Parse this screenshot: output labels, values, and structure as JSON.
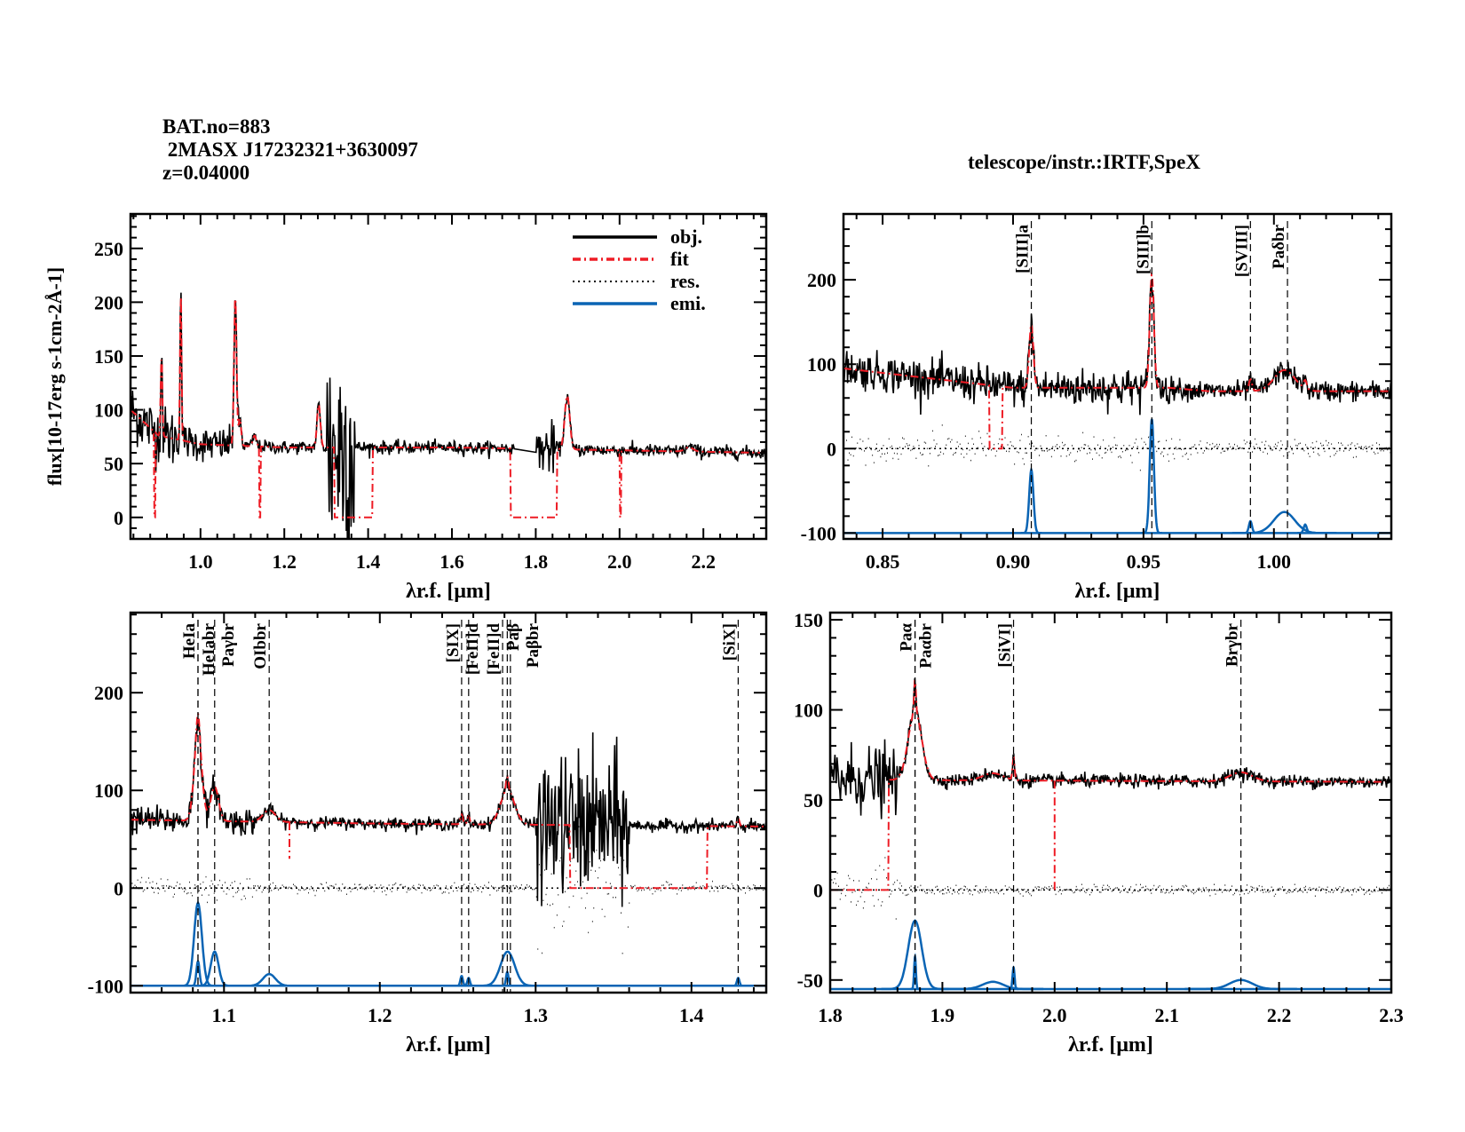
{
  "header": {
    "bat_no": "BAT.no=883",
    "object": " 2MASX J17232321+3630097",
    "redshift": "z=0.04000",
    "instrument": "telescope/instr.:IRTF,SpeX"
  },
  "colors": {
    "obj": "#000000",
    "fit": "#ee1c25",
    "res": "#000000",
    "emi": "#0a64b4"
  },
  "legend": {
    "placement": "top-right",
    "entries": [
      {
        "key": "obj",
        "label": "obj.",
        "style": "solid"
      },
      {
        "key": "fit",
        "label": "fit",
        "style": "dash-dot"
      },
      {
        "key": "res",
        "label": "res.",
        "style": "dotted"
      },
      {
        "key": "emi",
        "label": "emi.",
        "style": "solid"
      }
    ]
  },
  "chart_data": [
    {
      "type": "line",
      "panel": "full-spectrum",
      "xlabel": "λr.f. [μm]",
      "ylabel": "flux[10-17erg s-1cm-2Å-1]",
      "xlim": [
        0.833,
        2.35
      ],
      "ylim": [
        -20,
        282
      ],
      "xticks": [
        "1.0",
        "1.2",
        "1.4",
        "1.6",
        "1.8",
        "2.0",
        "2.2"
      ],
      "yticks": [
        "0",
        "50",
        "100",
        "150",
        "200",
        "250"
      ],
      "continuum": [
        [
          0.833,
          100
        ],
        [
          0.9,
          76
        ],
        [
          1.0,
          68
        ],
        [
          1.2,
          65
        ],
        [
          1.6,
          65
        ],
        [
          2.35,
          60
        ]
      ],
      "lines": [
        [
          0.907,
          75,
          0.002
        ],
        [
          0.953,
          140,
          0.0018
        ],
        [
          1.083,
          140,
          0.003
        ],
        [
          1.094,
          25,
          0.003
        ],
        [
          1.129,
          10,
          0.004
        ],
        [
          1.282,
          40,
          0.004
        ],
        [
          1.875,
          50,
          0.006
        ],
        [
          2.166,
          4,
          0.01
        ]
      ],
      "fit_zero_ranges": [
        [
          0.89,
          0.893
        ],
        [
          1.14,
          1.143
        ],
        [
          1.32,
          1.41
        ],
        [
          1.74,
          1.85
        ],
        [
          2.0,
          2.003
        ]
      ],
      "data_gaps": [
        [
          1.75,
          1.8
        ]
      ],
      "show_residual": false,
      "show_emission": false
    },
    {
      "type": "line",
      "panel": "zoom-0.83-1.05",
      "xlabel": "λr.f. [μm]",
      "xlim": [
        0.835,
        1.045
      ],
      "ylim": [
        -107,
        278
      ],
      "xticks": [
        "0.85",
        "0.90",
        "0.95",
        "1.00"
      ],
      "yticks": [
        "-100",
        "0",
        "100",
        "200"
      ],
      "emission_baseline": -100,
      "continuum": [
        [
          0.835,
          95
        ],
        [
          0.9,
          72
        ],
        [
          0.96,
          72
        ],
        [
          0.975,
          68
        ],
        [
          1.045,
          68
        ]
      ],
      "lines": [
        [
          0.907,
          75,
          0.0008
        ],
        [
          0.9532,
          135,
          0.0008
        ],
        [
          0.991,
          14,
          0.0006
        ],
        [
          1.004,
          25,
          0.004
        ],
        [
          1.012,
          10,
          0.0006
        ]
      ],
      "fit_zero_ranges": [
        [
          0.891,
          0.896
        ]
      ],
      "line_markers": [
        {
          "x": 0.907,
          "label": "[SIII]a"
        },
        {
          "x": 0.9532,
          "label": "[SIII]b"
        },
        {
          "x": 0.991,
          "label": "[SVIII]"
        },
        {
          "x": 1.0052,
          "label": "Paδbr"
        }
      ],
      "show_residual": true,
      "show_emission": true
    },
    {
      "type": "line",
      "panel": "zoom-1.04-1.45",
      "xlabel": "λr.f. [μm]",
      "xlim": [
        1.04,
        1.448
      ],
      "ylim": [
        -107,
        282
      ],
      "xticks": [
        "1.1",
        "1.2",
        "1.3",
        "1.4"
      ],
      "yticks": [
        "-100",
        "0",
        "100",
        "200"
      ],
      "emission_baseline": -100,
      "continuum": [
        [
          1.04,
          70
        ],
        [
          1.2,
          66
        ],
        [
          1.448,
          63
        ]
      ],
      "lines": [
        [
          1.0833,
          85,
          0.0025
        ],
        [
          1.0833,
          25,
          0.001
        ],
        [
          1.094,
          35,
          0.0025
        ],
        [
          1.129,
          12,
          0.004
        ],
        [
          1.2525,
          10,
          0.0008
        ],
        [
          1.257,
          8,
          0.0008
        ],
        [
          1.282,
          35,
          0.0045
        ],
        [
          1.2818,
          14,
          0.0008
        ],
        [
          1.43,
          8,
          0.0008
        ]
      ],
      "fit_zero_ranges": [
        [
          1.322,
          1.41
        ]
      ],
      "fit_drops": [
        [
          1.142,
          30
        ]
      ],
      "line_markers": [
        {
          "x": 1.0833,
          "label": "HeIa"
        },
        {
          "x": 1.0833,
          "label": "HeIabr"
        },
        {
          "x": 1.094,
          "label": "Paγbr"
        },
        {
          "x": 1.129,
          "label": "OIbbr"
        },
        {
          "x": 1.2525,
          "label": "[SIX]"
        },
        {
          "x": 1.257,
          "label": "[FeII]d"
        },
        {
          "x": 1.2788,
          "label": "[FeII]d"
        },
        {
          "x": 1.2818,
          "label": "Paβ"
        },
        {
          "x": 1.2838,
          "label": "Paβbr"
        },
        {
          "x": 1.43,
          "label": "[SiX]"
        }
      ],
      "show_residual": true,
      "show_emission": true
    },
    {
      "type": "line",
      "panel": "zoom-1.8-2.3",
      "xlabel": "λr.f. [μm]",
      "xlim": [
        1.8,
        2.3
      ],
      "ylim": [
        -57,
        154
      ],
      "xticks": [
        "1.8",
        "1.9",
        "2.0",
        "2.1",
        "2.2",
        "2.3"
      ],
      "yticks": [
        "-50",
        "0",
        "50",
        "100",
        "150"
      ],
      "emission_baseline": -55,
      "continuum": [
        [
          1.8,
          62
        ],
        [
          1.86,
          61
        ],
        [
          2.3,
          60
        ]
      ],
      "lines": [
        [
          1.8756,
          38,
          0.006
        ],
        [
          1.8756,
          18,
          0.0008
        ],
        [
          1.945,
          4,
          0.009
        ],
        [
          1.9634,
          12,
          0.0009
        ],
        [
          2.166,
          5,
          0.01
        ]
      ],
      "fit_zero_ranges": [
        [
          1.8,
          1.852
        ]
      ],
      "fit_drops": [
        [
          2.0,
          0
        ]
      ],
      "line_markers": [
        {
          "x": 1.8756,
          "label": "Paα"
        },
        {
          "x": 1.8756,
          "label": "Paαbr"
        },
        {
          "x": 1.9634,
          "label": "[SiVI]"
        },
        {
          "x": 2.166,
          "label": "Brγbr"
        }
      ],
      "show_residual": true,
      "show_emission": true
    }
  ]
}
